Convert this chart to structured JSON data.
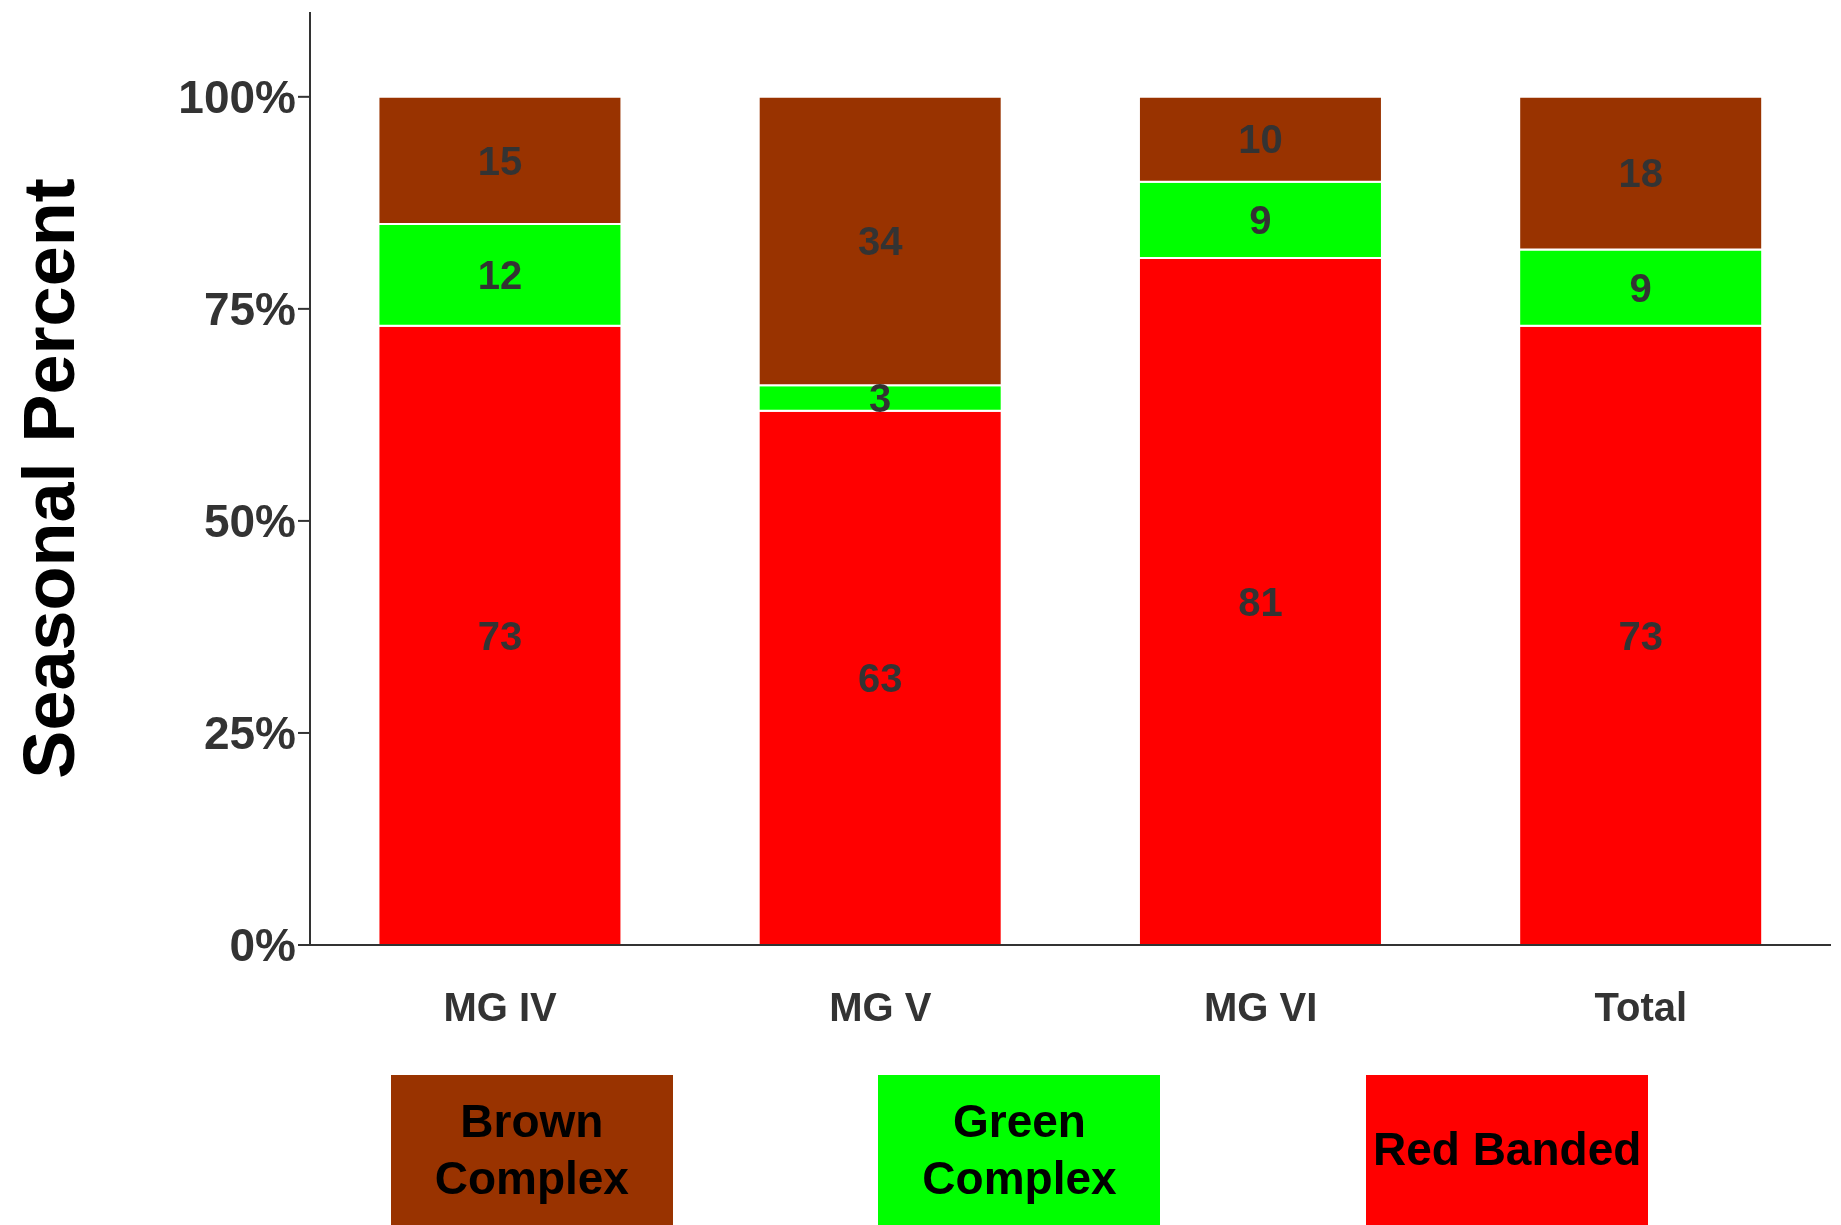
{
  "chart_data": {
    "type": "bar",
    "stacked": true,
    "ylabel": "Seasonal Percent",
    "categories": [
      "MG IV",
      "MG V",
      "MG VI",
      "Total"
    ],
    "series": [
      {
        "name": "Red Banded",
        "color": "#ff0000",
        "values": [
          73,
          63,
          81,
          73
        ]
      },
      {
        "name": "Green Complex",
        "color": "#00ff00",
        "values": [
          12,
          3,
          9,
          9
        ]
      },
      {
        "name": "Brown Complex",
        "color": "#993300",
        "values": [
          15,
          34,
          10,
          18
        ]
      }
    ],
    "ylim": [
      0,
      110
    ],
    "yticks": [
      {
        "value": 0,
        "label": "0%"
      },
      {
        "value": 25,
        "label": "25%"
      },
      {
        "value": 50,
        "label": "50%"
      },
      {
        "value": 75,
        "label": "75%"
      },
      {
        "value": 100,
        "label": "100%"
      }
    ],
    "data_labels": true,
    "grid": false,
    "legend": "bottom"
  }
}
